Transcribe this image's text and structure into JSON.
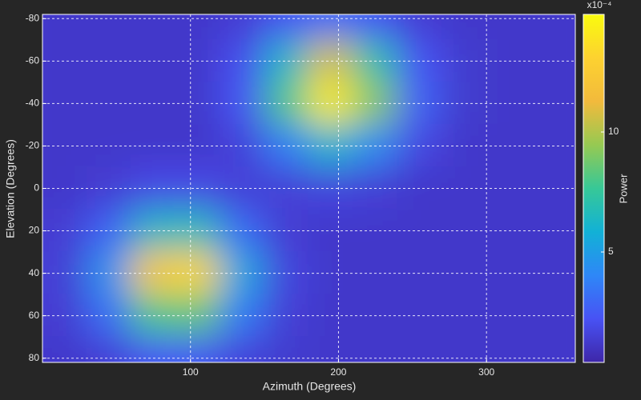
{
  "chart_data": {
    "type": "heatmap",
    "x_label": "Azimuth (Degrees)",
    "y_label": "Elevation (Degrees)",
    "x": [
      15,
      45,
      75,
      105,
      135,
      165,
      195,
      225,
      255,
      285,
      315,
      345
    ],
    "y": [
      -80,
      -60,
      -40,
      -20,
      0,
      20,
      40,
      60,
      80
    ],
    "z": [
      [
        1.2,
        1.2,
        1.2,
        1.2,
        1.4,
        2.2,
        3.1,
        2.3,
        1.4,
        1.2,
        1.2,
        1.2
      ],
      [
        1.2,
        1.2,
        1.2,
        1.2,
        2.1,
        6.2,
        10.7,
        7.0,
        2.3,
        1.3,
        1.2,
        1.2
      ],
      [
        1.2,
        1.2,
        1.2,
        1.2,
        2.4,
        8.1,
        14.2,
        9.2,
        2.8,
        1.3,
        1.2,
        1.2
      ],
      [
        1.2,
        1.2,
        1.2,
        1.2,
        1.6,
        3.8,
        6.2,
        4.3,
        1.8,
        1.2,
        1.2,
        1.2
      ],
      [
        1.2,
        1.4,
        1.9,
        1.9,
        1.5,
        1.5,
        1.7,
        1.5,
        1.2,
        1.2,
        1.2,
        1.2
      ],
      [
        1.4,
        2.8,
        6.4,
        6.7,
        3.1,
        1.4,
        1.2,
        1.2,
        1.2,
        1.2,
        1.2,
        1.2
      ],
      [
        1.5,
        4.6,
        12.4,
        13.2,
        5.4,
        1.7,
        1.2,
        1.2,
        1.2,
        1.2,
        1.2,
        1.2
      ],
      [
        1.4,
        3.2,
        7.9,
        8.4,
        3.7,
        1.5,
        1.2,
        1.2,
        1.2,
        1.2,
        1.2,
        1.2
      ],
      [
        1.2,
        1.5,
        2.3,
        2.4,
        1.6,
        1.3,
        1.2,
        1.2,
        1.2,
        1.2,
        1.2,
        1.2
      ]
    ],
    "xlim": [
      0,
      360
    ],
    "ylim": [
      -82,
      82
    ],
    "y_reversed": true,
    "xticks": [
      100,
      200,
      300
    ],
    "yticks": [
      -80,
      -60,
      -40,
      -20,
      0,
      20,
      40,
      60,
      80
    ],
    "grid": true,
    "colormap": "parula",
    "colorbar_label": "Power",
    "colorbar_multiplier": "x10⁻⁴",
    "clim": [
      0.4,
      14.9
    ],
    "colorbar_ticks": [
      5,
      10
    ]
  }
}
